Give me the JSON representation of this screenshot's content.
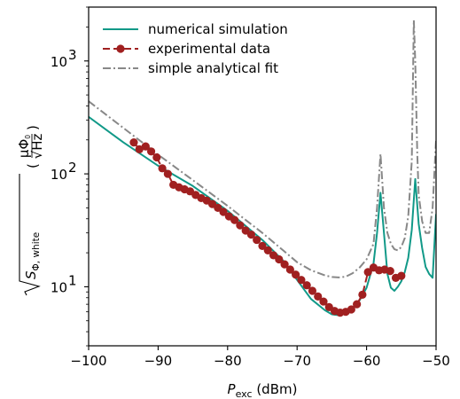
{
  "chart_data": {
    "type": "line",
    "xlabel": {
      "main": "P",
      "sub": "exc",
      "unit": " (dBm)"
    },
    "ylabel": {
      "rad": "S",
      "sub": "Φ, white",
      "num": "μΦ",
      "num_sub": "0",
      "den": "√Hz"
    },
    "xlim": [
      -100,
      -50
    ],
    "ylim": [
      3,
      3000
    ],
    "yscale": "log",
    "grid": false,
    "legend_position": "upper-left",
    "xticks": [
      {
        "value": -100,
        "label": "−100"
      },
      {
        "value": -90,
        "label": "−90"
      },
      {
        "value": -80,
        "label": "−80"
      },
      {
        "value": -70,
        "label": "−70"
      },
      {
        "value": -60,
        "label": "−60"
      },
      {
        "value": -50,
        "label": "−50"
      }
    ],
    "yticks": [
      {
        "value": 10,
        "base": "10",
        "exp": "1"
      },
      {
        "value": 100,
        "base": "10",
        "exp": "2"
      },
      {
        "value": 1000,
        "base": "10",
        "exp": "3"
      }
    ],
    "series": [
      {
        "name": "numerical simulation",
        "style": "solid",
        "marker": "none",
        "color": "#119988",
        "x": [
          -100,
          -95,
          -90,
          -85,
          -80,
          -75,
          -72,
          -70,
          -68,
          -66,
          -65,
          -64,
          -63,
          -62,
          -61,
          -60,
          -59,
          -58.5,
          -58,
          -57.5,
          -57,
          -56.5,
          -56,
          -55.5,
          -55,
          -54.5,
          -54,
          -53.5,
          -53,
          -52.5,
          -52,
          -51.5,
          -51,
          -50.5,
          -50
        ],
        "y": [
          320,
          190,
          118,
          78,
          47,
          26,
          17,
          11.5,
          7.8,
          6.2,
          5.7,
          5.6,
          5.9,
          6.5,
          7.6,
          9.8,
          16,
          30,
          68,
          30,
          13,
          9.8,
          9.2,
          10,
          11.2,
          13.5,
          18,
          32,
          90,
          36,
          22,
          15,
          13,
          12,
          44
        ]
      },
      {
        "name": "experimental data",
        "style": "dashed",
        "marker": "circle",
        "color": "#a02020",
        "x": [
          -93.5,
          -92.7,
          -91.8,
          -91.0,
          -90.2,
          -89.4,
          -88.6,
          -87.8,
          -87.0,
          -86.2,
          -85.4,
          -84.6,
          -83.8,
          -83.0,
          -82.2,
          -81.4,
          -80.6,
          -79.8,
          -79.0,
          -78.2,
          -77.4,
          -76.6,
          -75.8,
          -75.0,
          -74.2,
          -73.4,
          -72.6,
          -71.8,
          -71.0,
          -70.2,
          -69.4,
          -68.6,
          -67.8,
          -67.0,
          -66.2,
          -65.4,
          -64.6,
          -63.8,
          -63.0,
          -62.2,
          -61.4,
          -60.6,
          -59.8,
          -59.0,
          -58.2,
          -57.4,
          -56.6,
          -55.8,
          -55.0
        ],
        "y": [
          190,
          165,
          175,
          158,
          140,
          112,
          100,
          80,
          76,
          73,
          70,
          65,
          61,
          58,
          54,
          50,
          46,
          42,
          39,
          35,
          31.5,
          29,
          26,
          23,
          21,
          19,
          17.5,
          15.8,
          14.2,
          12.8,
          11.5,
          10.3,
          9.2,
          8.2,
          7.4,
          6.6,
          6.1,
          5.9,
          6.0,
          6.3,
          7.0,
          8.5,
          13.5,
          14.8,
          14.0,
          14.2,
          13.8,
          12.0,
          12.5
        ]
      },
      {
        "name": "simple analytical fit",
        "style": "dashdot",
        "marker": "none",
        "color": "#888888",
        "x": [
          -100,
          -95,
          -90,
          -85,
          -80,
          -75,
          -72,
          -70,
          -68,
          -66,
          -65,
          -64,
          -63,
          -62,
          -61,
          -60,
          -59,
          -58.5,
          -58,
          -57.5,
          -57,
          -56.5,
          -56,
          -55.5,
          -55,
          -54.5,
          -54,
          -53.5,
          -53.2,
          -53,
          -52.7,
          -52.5,
          -52,
          -51.5,
          -51,
          -50.5,
          -50
        ],
        "y": [
          440,
          255,
          148,
          88,
          52,
          30,
          21,
          16.5,
          14,
          12.6,
          12.2,
          12.1,
          12.3,
          13.2,
          14.8,
          17.5,
          24,
          50,
          150,
          50,
          30,
          24,
          21.5,
          21,
          22.5,
          27,
          42,
          130,
          2300,
          1000,
          150,
          65,
          38,
          30,
          30,
          50,
          200
        ]
      }
    ]
  }
}
